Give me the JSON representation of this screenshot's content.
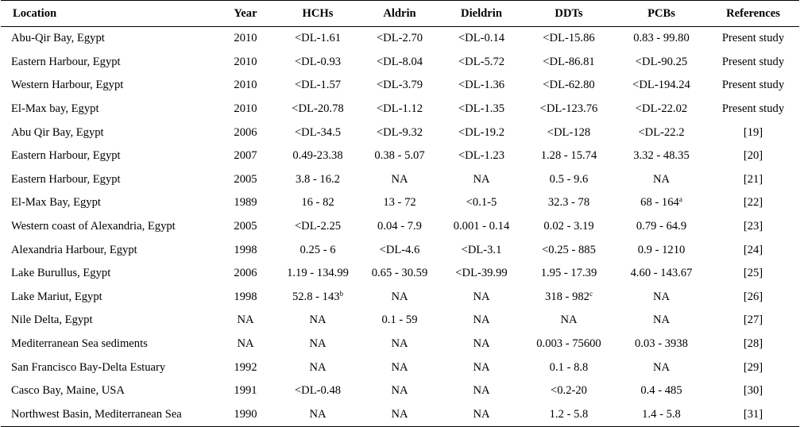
{
  "table": {
    "headers": [
      "Location",
      "Year",
      "HCHs",
      "Aldrin",
      "Dieldrin",
      "DDTs",
      "PCBs",
      "References"
    ],
    "rows": [
      {
        "location": "Abu-Qir Bay, Egypt",
        "year": "2010",
        "hchs": "<DL-1.61",
        "aldrin": "<DL-2.70",
        "dieldrin": "<DL-0.14",
        "ddts": "<DL-15.86",
        "pcbs": "0.83 - 99.80",
        "ref": "Present study"
      },
      {
        "location": "Eastern Harbour, Egypt",
        "year": "2010",
        "hchs": "<DL-0.93",
        "aldrin": "<DL-8.04",
        "dieldrin": "<DL-5.72",
        "ddts": "<DL-86.81",
        "pcbs": "<DL-90.25",
        "ref": "Present study"
      },
      {
        "location": "Western Harbour, Egypt",
        "year": "2010",
        "hchs": "<DL-1.57",
        "aldrin": "<DL-3.79",
        "dieldrin": "<DL-1.36",
        "ddts": "<DL-62.80",
        "pcbs": "<DL-194.24",
        "ref": "Present study"
      },
      {
        "location": "El-Max bay, Egypt",
        "year": "2010",
        "hchs": "<DL-20.78",
        "aldrin": "<DL-1.12",
        "dieldrin": "<DL-1.35",
        "ddts": "<DL-123.76",
        "pcbs": "<DL-22.02",
        "ref": "Present study"
      },
      {
        "location": "Abu Qir Bay, Egypt",
        "year": "2006",
        "hchs": "<DL-34.5",
        "aldrin": "<DL-9.32",
        "dieldrin": "<DL-19.2",
        "ddts": "<DL-128",
        "pcbs": "<DL-22.2",
        "ref": "[19]"
      },
      {
        "location": "Eastern Harbour, Egypt",
        "year": "2007",
        "hchs": "0.49-23.38",
        "aldrin": "0.38 - 5.07",
        "dieldrin": "<DL-1.23",
        "ddts": "1.28 - 15.74",
        "pcbs": "3.32 - 48.35",
        "ref": "[20]"
      },
      {
        "location": "Eastern Harbour, Egypt",
        "year": "2005",
        "hchs": "3.8 - 16.2",
        "aldrin": "NA",
        "dieldrin": "NA",
        "ddts": "0.5 - 9.6",
        "pcbs": "NA",
        "ref": "[21]"
      },
      {
        "location": "El-Max Bay, Egypt",
        "year": "1989",
        "hchs": "16 - 82",
        "aldrin": "13 - 72",
        "dieldrin": "<0.1-5",
        "ddts": "32.3 - 78",
        "pcbs": "68 - 164",
        "pcbs_sup": "a",
        "ref": "[22]"
      },
      {
        "location": "Western coast of Alexandria, Egypt",
        "year": "2005",
        "hchs": "<DL-2.25",
        "aldrin": "0.04 - 7.9",
        "dieldrin": "0.001 - 0.14",
        "ddts": "0.02 - 3.19",
        "pcbs": "0.79 - 64.9",
        "ref": "[23]"
      },
      {
        "location": "Alexandria Harbour, Egypt",
        "year": "1998",
        "hchs": "0.25 - 6",
        "aldrin": "<DL-4.6",
        "dieldrin": "<DL-3.1",
        "ddts": "<0.25 - 885",
        "pcbs": "0.9 - 1210",
        "ref": "[24]"
      },
      {
        "location": "Lake Burullus, Egypt",
        "year": "2006",
        "hchs": "1.19 - 134.99",
        "aldrin": "0.65 - 30.59",
        "dieldrin": "<DL-39.99",
        "ddts": "1.95 - 17.39",
        "pcbs": "4.60 - 143.67",
        "ref": "[25]"
      },
      {
        "location": "Lake Mariut, Egypt",
        "year": "1998",
        "hchs": "52.8 - 143",
        "hchs_sup": "b",
        "aldrin": "NA",
        "dieldrin": "NA",
        "ddts": "318 - 982",
        "ddts_sup": "c",
        "pcbs": "NA",
        "ref": "[26]"
      },
      {
        "location": "Nile Delta, Egypt",
        "year": "NA",
        "hchs": "NA",
        "aldrin": "0.1 - 59",
        "dieldrin": "NA",
        "ddts": "NA",
        "pcbs": "NA",
        "ref": "[27]"
      },
      {
        "location": "Mediterranean Sea sediments",
        "year": "NA",
        "hchs": "NA",
        "aldrin": "NA",
        "dieldrin": "NA",
        "ddts": "0.003 - 75600",
        "pcbs": "0.03 - 3938",
        "ref": "[28]"
      },
      {
        "location": "San Francisco Bay-Delta Estuary",
        "year": "1992",
        "hchs": "NA",
        "aldrin": "NA",
        "dieldrin": "NA",
        "ddts": "0.1 - 8.8",
        "pcbs": "NA",
        "ref": "[29]"
      },
      {
        "location": "Casco Bay, Maine, USA",
        "year": "1991",
        "hchs": "<DL-0.48",
        "aldrin": "NA",
        "dieldrin": "NA",
        "ddts": "<0.2-20",
        "pcbs": "0.4 - 485",
        "ref": "[30]"
      },
      {
        "location": "Northwest Basin, Mediterranean Sea",
        "year": "1990",
        "hchs": "NA",
        "aldrin": "NA",
        "dieldrin": "NA",
        "ddts": "1.2 - 5.8",
        "pcbs": "1.4 - 5.8",
        "ref": "[31]"
      }
    ]
  }
}
